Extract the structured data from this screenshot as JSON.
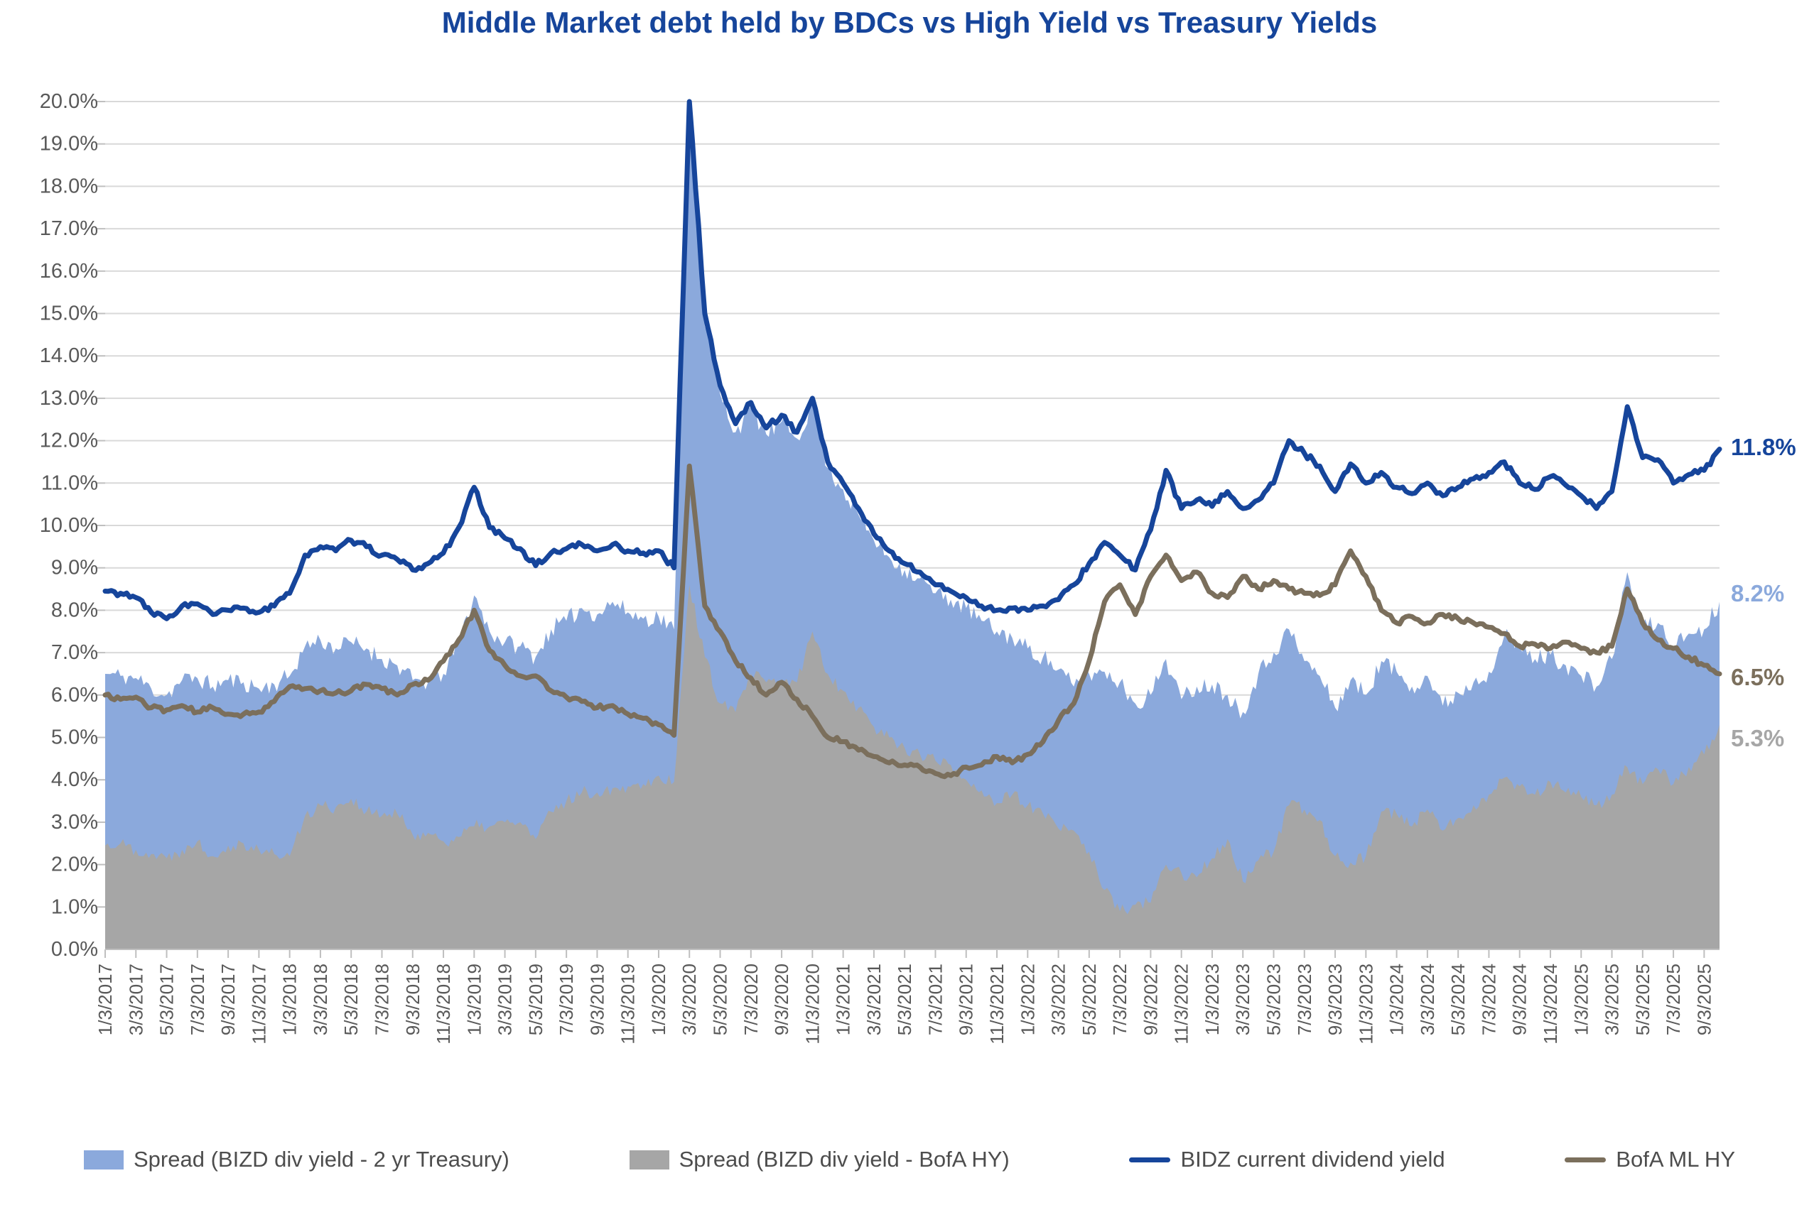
{
  "title": {
    "text": "Middle Market debt held by BDCs vs High Yield vs Treasury Yields",
    "color": "#16459B"
  },
  "end_labels": [
    {
      "text": "11.8%",
      "value": 11.8,
      "dy": -2,
      "color": "#16459B",
      "series": "bidz-dividend-yield"
    },
    {
      "text": "8.2%",
      "value": 8.2,
      "dy": -10,
      "color": "#8BA9DC",
      "series": "spread-vs-2yr-treasury"
    },
    {
      "text": "6.5%",
      "value": 6.5,
      "dy": 6,
      "color": "#7B6F5C",
      "series": "bofa-ml-hy"
    },
    {
      "text": "5.3%",
      "value": 5.3,
      "dy": 20,
      "color": "#A6A6A6",
      "series": "spread-vs-bofa-hy"
    }
  ],
  "chart_data": {
    "type": "area+line",
    "title": "Middle Market debt held by BDCs vs High Yield vs Treasury Yields",
    "grid": true,
    "legend_position": "bottom",
    "ylim": [
      0,
      20
    ],
    "y_tick_step": 1,
    "y_tick_labels": [
      "0.0%",
      "1.0%",
      "2.0%",
      "3.0%",
      "4.0%",
      "5.0%",
      "6.0%",
      "7.0%",
      "8.0%",
      "9.0%",
      "10.0%",
      "11.0%",
      "12.0%",
      "13.0%",
      "14.0%",
      "15.0%",
      "16.0%",
      "17.0%",
      "18.0%",
      "19.0%",
      "20.0%"
    ],
    "x_unit": "months since 2017-01, one value per month",
    "x_tick_every_months": 2,
    "x_tick_labels": [
      "1/3/2017",
      "3/3/2017",
      "5/3/2017",
      "7/3/2017",
      "9/3/2017",
      "11/3/2017",
      "1/3/2018",
      "3/3/2018",
      "5/3/2018",
      "7/3/2018",
      "9/3/2018",
      "11/3/2018",
      "1/3/2019",
      "3/3/2019",
      "5/3/2019",
      "7/3/2019",
      "9/3/2019",
      "11/3/2019",
      "1/3/2020",
      "3/3/2020",
      "5/3/2020",
      "7/3/2020",
      "9/3/2020",
      "11/3/2020",
      "1/3/2021",
      "3/3/2021",
      "5/3/2021",
      "7/3/2021",
      "9/3/2021",
      "11/3/2021",
      "1/3/2022",
      "3/3/2022",
      "5/3/2022",
      "7/3/2022",
      "9/3/2022",
      "11/3/2022",
      "1/3/2023",
      "3/3/2023",
      "5/3/2023",
      "7/3/2023",
      "9/3/2023",
      "11/3/2023",
      "1/3/2024",
      "3/3/2024",
      "5/3/2024",
      "7/3/2024",
      "9/3/2024",
      "11/3/2024",
      "1/3/2025",
      "3/3/2025",
      "5/3/2025",
      "7/3/2025",
      "9/3/2025"
    ],
    "gridline_color": "#D9D9D9",
    "axis_color": "#BFBFBF",
    "tick_label_color": "#595959",
    "series": [
      {
        "id": "spread-vs-2yr-treasury",
        "legend_label": "Spread (BIZD div yield - 2 yr Treasury)",
        "type": "area",
        "color": "#8BA9DC",
        "noise": 0.22,
        "values": [
          6.5,
          6.45,
          6.4,
          6.15,
          6.0,
          6.35,
          6.4,
          6.2,
          6.35,
          6.3,
          6.15,
          6.25,
          6.45,
          7.15,
          7.3,
          7.1,
          7.25,
          7.1,
          6.85,
          6.7,
          6.35,
          6.3,
          6.5,
          7.25,
          8.35,
          7.5,
          7.25,
          7.15,
          6.9,
          7.55,
          7.75,
          8.05,
          7.9,
          8.2,
          7.95,
          7.8,
          7.85,
          7.55,
          19.6,
          14.7,
          13.1,
          12.2,
          12.75,
          12.15,
          12.45,
          12.05,
          12.85,
          11.35,
          10.85,
          10.25,
          9.65,
          9.25,
          8.95,
          8.75,
          8.4,
          8.25,
          8.05,
          7.75,
          7.5,
          7.35,
          7.1,
          6.9,
          6.6,
          6.2,
          6.5,
          6.55,
          6.3,
          5.8,
          6.0,
          6.85,
          5.9,
          6.2,
          6.25,
          6.0,
          5.6,
          6.5,
          7.0,
          7.55,
          6.8,
          6.45,
          5.7,
          6.35,
          6.0,
          6.8,
          6.55,
          6.2,
          6.45,
          5.75,
          6.05,
          6.3,
          6.55,
          7.4,
          7.1,
          6.85,
          6.95,
          6.7,
          6.45,
          6.2,
          6.85,
          8.9,
          7.6,
          7.7,
          7.15,
          7.45,
          7.55,
          8.2
        ]
      },
      {
        "id": "spread-vs-bofa-hy",
        "legend_label": "Spread (BIZD div yield - BofA HY)",
        "type": "area",
        "color": "#A6A6A6",
        "noise": 0.16,
        "values": [
          2.45,
          2.5,
          2.35,
          2.25,
          2.15,
          2.35,
          2.55,
          2.2,
          2.45,
          2.5,
          2.35,
          2.25,
          2.2,
          3.15,
          3.4,
          3.35,
          3.55,
          3.25,
          3.15,
          3.2,
          2.7,
          2.75,
          2.55,
          2.65,
          2.9,
          2.9,
          3.0,
          3.0,
          2.6,
          3.25,
          3.5,
          3.7,
          3.7,
          3.8,
          3.85,
          3.9,
          4.1,
          3.95,
          8.6,
          6.9,
          5.8,
          5.6,
          6.5,
          6.3,
          6.3,
          6.3,
          7.5,
          6.5,
          6.1,
          5.7,
          5.25,
          5.0,
          4.75,
          4.6,
          4.45,
          4.35,
          4.0,
          3.75,
          3.45,
          3.65,
          3.4,
          3.2,
          2.85,
          2.8,
          2.3,
          1.4,
          0.9,
          1.05,
          1.1,
          2.0,
          1.8,
          1.7,
          2.15,
          2.6,
          1.6,
          2.1,
          2.3,
          3.4,
          3.3,
          3.05,
          2.2,
          2.05,
          2.2,
          3.25,
          3.2,
          2.9,
          3.3,
          2.8,
          3.1,
          3.4,
          3.65,
          4.05,
          3.85,
          3.65,
          3.95,
          3.7,
          3.6,
          3.4,
          3.65,
          4.3,
          3.9,
          4.25,
          3.9,
          4.3,
          4.6,
          5.3
        ]
      },
      {
        "id": "bidz-dividend-yield",
        "legend_label": "BIDZ current dividend yield",
        "type": "line",
        "color": "#16459B",
        "noise": 0.07,
        "values": [
          8.45,
          8.4,
          8.3,
          7.95,
          7.8,
          8.1,
          8.15,
          7.9,
          8.0,
          8.05,
          7.95,
          8.1,
          8.4,
          9.3,
          9.5,
          9.4,
          9.65,
          9.5,
          9.3,
          9.2,
          8.95,
          9.1,
          9.35,
          9.95,
          10.9,
          9.95,
          9.7,
          9.45,
          9.05,
          9.35,
          9.45,
          9.55,
          9.4,
          9.55,
          9.4,
          9.35,
          9.4,
          9.0,
          20.0,
          15.0,
          13.3,
          12.4,
          12.9,
          12.3,
          12.6,
          12.2,
          13.0,
          11.5,
          11.0,
          10.4,
          9.8,
          9.4,
          9.1,
          8.9,
          8.6,
          8.45,
          8.3,
          8.1,
          8.0,
          8.05,
          8.0,
          8.1,
          8.25,
          8.6,
          9.1,
          9.6,
          9.3,
          8.95,
          9.9,
          11.3,
          10.4,
          10.6,
          10.45,
          10.8,
          10.4,
          10.6,
          11.0,
          12.0,
          11.7,
          11.4,
          10.8,
          11.45,
          11.0,
          11.25,
          10.9,
          10.75,
          11.0,
          10.7,
          10.9,
          11.1,
          11.25,
          11.5,
          11.0,
          10.85,
          11.15,
          10.95,
          10.7,
          10.4,
          10.8,
          12.8,
          11.6,
          11.55,
          11.0,
          11.2,
          11.3,
          11.8
        ]
      },
      {
        "id": "bofa-ml-hy",
        "legend_label": "BofA ML HY",
        "type": "line",
        "color": "#7B6F5C",
        "noise": 0.06,
        "values": [
          6.0,
          5.9,
          5.95,
          5.7,
          5.65,
          5.75,
          5.6,
          5.7,
          5.55,
          5.55,
          5.6,
          5.85,
          6.2,
          6.15,
          6.1,
          6.05,
          6.1,
          6.25,
          6.15,
          6.0,
          6.25,
          6.35,
          6.8,
          7.3,
          8.0,
          7.05,
          6.7,
          6.45,
          6.45,
          6.1,
          5.95,
          5.85,
          5.7,
          5.75,
          5.55,
          5.45,
          5.3,
          5.05,
          11.4,
          8.1,
          7.5,
          6.8,
          6.4,
          6.0,
          6.3,
          5.9,
          5.5,
          5.0,
          4.9,
          4.7,
          4.55,
          4.4,
          4.35,
          4.3,
          4.15,
          4.1,
          4.3,
          4.35,
          4.55,
          4.4,
          4.6,
          4.9,
          5.4,
          5.8,
          6.8,
          8.2,
          8.6,
          7.9,
          8.8,
          9.3,
          8.7,
          8.9,
          8.4,
          8.3,
          8.8,
          8.5,
          8.7,
          8.5,
          8.4,
          8.35,
          8.6,
          9.4,
          8.8,
          8.0,
          7.7,
          7.85,
          7.7,
          7.9,
          7.8,
          7.7,
          7.6,
          7.45,
          7.15,
          7.2,
          7.1,
          7.25,
          7.1,
          7.0,
          7.15,
          8.5,
          7.7,
          7.3,
          7.1,
          6.9,
          6.7,
          6.5
        ]
      }
    ]
  }
}
